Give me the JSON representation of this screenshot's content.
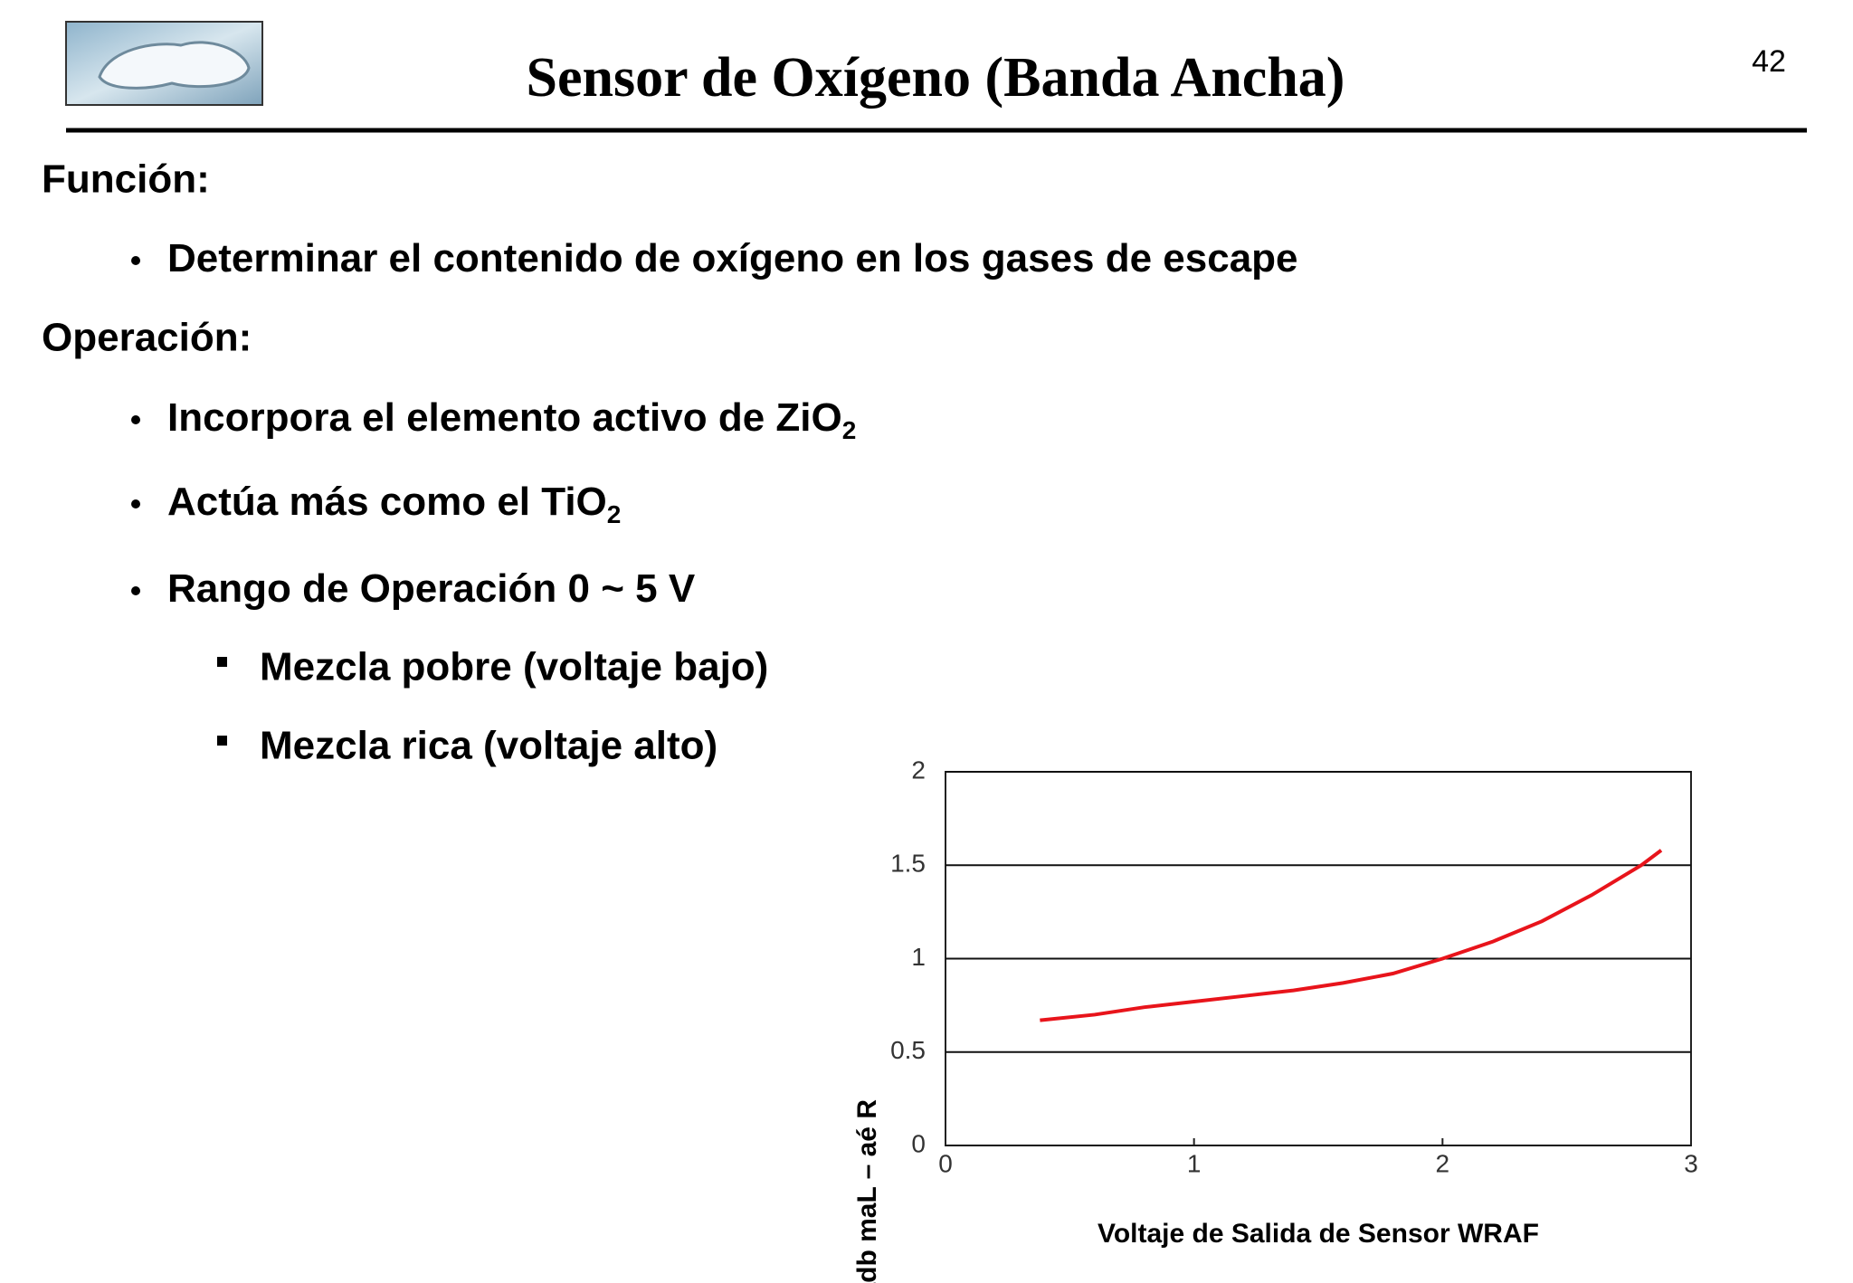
{
  "slide": {
    "title": "Sensor de Oxígeno (Banda Ancha)",
    "page_number": "42",
    "sections": [
      {
        "heading": "Función:",
        "items": [
          {
            "text": "Determinar el contenido de oxígeno en los gases de escape"
          }
        ]
      },
      {
        "heading": "Operación:",
        "items": [
          {
            "text": "Incorpora el elemento activo de ZiO",
            "sub": "2"
          },
          {
            "text": "Actúa más como el TiO",
            "sub": "2"
          },
          {
            "text": "Rango de Operación 0 ~ 5 V",
            "subitems": [
              "Mezcla pobre (voltaje bajo)",
              "Mezcla rica (voltaje alto)"
            ]
          }
        ]
      }
    ]
  },
  "chart_data": {
    "type": "line",
    "x_label": "Voltaje de Salida de Sensor WRAF",
    "y_label": "adb maL – aé R",
    "x": [
      0.38,
      0.6,
      0.8,
      1.0,
      1.2,
      1.4,
      1.6,
      1.8,
      2.0,
      2.2,
      2.4,
      2.6,
      2.8,
      2.88
    ],
    "values": [
      0.67,
      0.7,
      0.74,
      0.77,
      0.8,
      0.83,
      0.87,
      0.92,
      1.0,
      1.09,
      1.2,
      1.34,
      1.5,
      1.58
    ],
    "color": "#e8141b",
    "xlim": [
      0,
      3
    ],
    "ylim": [
      0,
      2
    ],
    "xticks": [
      0,
      1,
      2,
      3
    ],
    "yticks": [
      0,
      0.5,
      1,
      1.5,
      2
    ],
    "grid": true
  }
}
